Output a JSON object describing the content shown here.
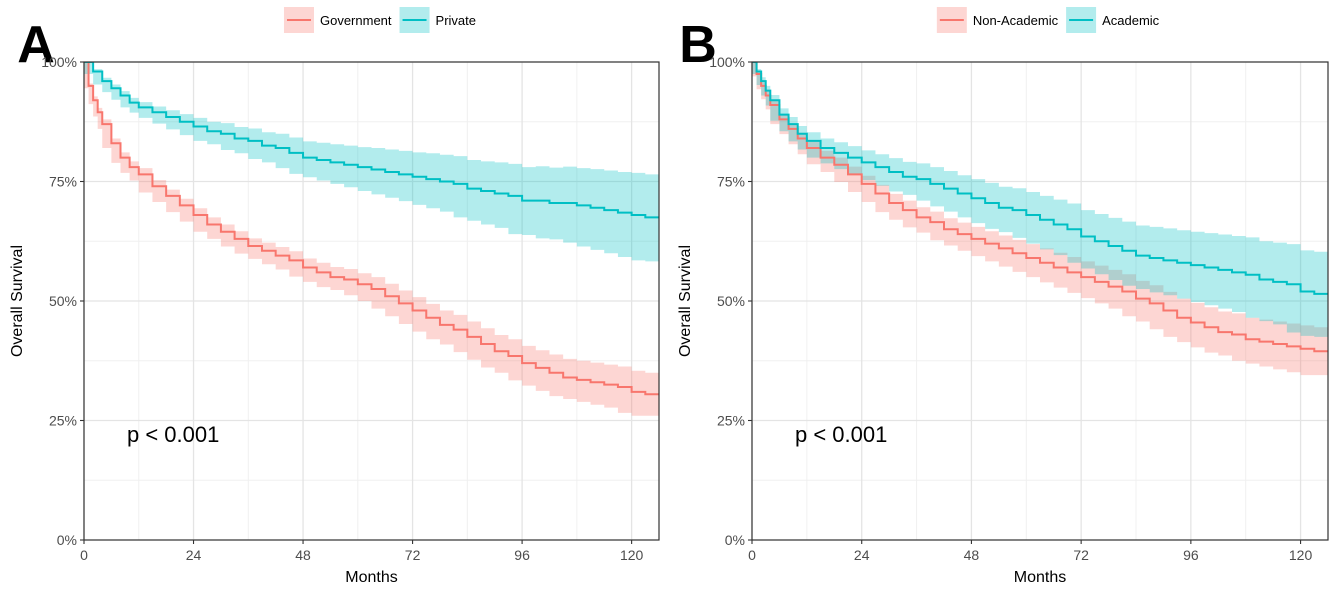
{
  "chart_data": [
    {
      "type": "line",
      "panel_label": "A",
      "xlabel": "Months",
      "ylabel": "Overall Survival",
      "xlim": [
        0,
        126
      ],
      "ylim": [
        0,
        1
      ],
      "x_ticks": [
        0,
        24,
        48,
        72,
        96,
        120
      ],
      "x_tick_labels": [
        "0",
        "24",
        "48",
        "72",
        "96",
        "120"
      ],
      "y_ticks": [
        0,
        0.25,
        0.5,
        0.75,
        1.0
      ],
      "y_tick_labels": [
        "0%",
        "25%",
        "50%",
        "75%",
        "100%"
      ],
      "grid": true,
      "legend_position": "top",
      "annotation": "p < 0.001",
      "series": [
        {
          "name": "Government",
          "color": "#F8766D",
          "band_color": "#F8766D",
          "x": [
            0,
            1,
            2,
            3,
            4,
            6,
            8,
            10,
            12,
            15,
            18,
            21,
            24,
            27,
            30,
            33,
            36,
            39,
            42,
            45,
            48,
            51,
            54,
            57,
            60,
            63,
            66,
            69,
            72,
            75,
            78,
            81,
            84,
            87,
            90,
            93,
            96,
            99,
            102,
            105,
            108,
            111,
            114,
            117,
            120,
            123,
            126
          ],
          "values": [
            1.0,
            0.95,
            0.92,
            0.895,
            0.87,
            0.83,
            0.8,
            0.78,
            0.765,
            0.74,
            0.72,
            0.7,
            0.68,
            0.66,
            0.645,
            0.63,
            0.615,
            0.605,
            0.595,
            0.585,
            0.57,
            0.56,
            0.55,
            0.545,
            0.535,
            0.525,
            0.51,
            0.495,
            0.48,
            0.465,
            0.45,
            0.44,
            0.425,
            0.41,
            0.395,
            0.385,
            0.37,
            0.36,
            0.35,
            0.34,
            0.335,
            0.33,
            0.325,
            0.32,
            0.31,
            0.305,
            0.305
          ],
          "lower": [
            1.0,
            0.945,
            0.912,
            0.886,
            0.86,
            0.82,
            0.789,
            0.768,
            0.752,
            0.727,
            0.707,
            0.686,
            0.666,
            0.645,
            0.63,
            0.614,
            0.599,
            0.588,
            0.577,
            0.566,
            0.551,
            0.54,
            0.529,
            0.523,
            0.512,
            0.5,
            0.484,
            0.468,
            0.452,
            0.436,
            0.42,
            0.409,
            0.393,
            0.377,
            0.361,
            0.35,
            0.334,
            0.323,
            0.312,
            0.301,
            0.295,
            0.289,
            0.283,
            0.277,
            0.266,
            0.26,
            0.26
          ],
          "upper": [
            1.0,
            0.955,
            0.928,
            0.904,
            0.88,
            0.84,
            0.811,
            0.792,
            0.778,
            0.753,
            0.733,
            0.714,
            0.694,
            0.675,
            0.66,
            0.646,
            0.631,
            0.622,
            0.613,
            0.604,
            0.589,
            0.58,
            0.571,
            0.567,
            0.558,
            0.55,
            0.536,
            0.522,
            0.508,
            0.494,
            0.48,
            0.471,
            0.457,
            0.443,
            0.429,
            0.42,
            0.406,
            0.397,
            0.388,
            0.379,
            0.375,
            0.371,
            0.367,
            0.363,
            0.354,
            0.35,
            0.35
          ]
        },
        {
          "name": "Private",
          "color": "#00BFC4",
          "band_color": "#00BFC4",
          "x": [
            0,
            2,
            4,
            6,
            8,
            10,
            12,
            15,
            18,
            21,
            24,
            27,
            30,
            33,
            36,
            39,
            42,
            45,
            48,
            51,
            54,
            57,
            60,
            63,
            66,
            69,
            72,
            75,
            78,
            81,
            84,
            87,
            90,
            93,
            96,
            99,
            102,
            105,
            108,
            111,
            114,
            117,
            120,
            123,
            126
          ],
          "values": [
            1.0,
            0.98,
            0.96,
            0.945,
            0.93,
            0.915,
            0.905,
            0.895,
            0.885,
            0.875,
            0.865,
            0.855,
            0.85,
            0.84,
            0.835,
            0.825,
            0.82,
            0.81,
            0.8,
            0.795,
            0.79,
            0.785,
            0.78,
            0.775,
            0.77,
            0.765,
            0.76,
            0.755,
            0.75,
            0.745,
            0.735,
            0.73,
            0.725,
            0.72,
            0.71,
            0.71,
            0.705,
            0.705,
            0.7,
            0.695,
            0.69,
            0.685,
            0.68,
            0.675,
            0.675
          ],
          "lower": [
            1.0,
            0.975,
            0.953,
            0.937,
            0.921,
            0.905,
            0.894,
            0.883,
            0.871,
            0.859,
            0.847,
            0.835,
            0.828,
            0.816,
            0.809,
            0.797,
            0.79,
            0.778,
            0.766,
            0.759,
            0.752,
            0.745,
            0.738,
            0.73,
            0.723,
            0.716,
            0.709,
            0.701,
            0.694,
            0.687,
            0.675,
            0.668,
            0.66,
            0.653,
            0.64,
            0.638,
            0.631,
            0.629,
            0.622,
            0.614,
            0.607,
            0.6,
            0.592,
            0.585,
            0.583
          ],
          "upper": [
            1.0,
            0.985,
            0.967,
            0.953,
            0.939,
            0.925,
            0.916,
            0.907,
            0.899,
            0.891,
            0.883,
            0.875,
            0.872,
            0.864,
            0.861,
            0.853,
            0.85,
            0.842,
            0.834,
            0.831,
            0.828,
            0.825,
            0.822,
            0.82,
            0.817,
            0.814,
            0.811,
            0.809,
            0.806,
            0.803,
            0.795,
            0.792,
            0.79,
            0.787,
            0.78,
            0.782,
            0.779,
            0.781,
            0.778,
            0.776,
            0.773,
            0.77,
            0.768,
            0.765,
            0.767
          ]
        }
      ]
    },
    {
      "type": "line",
      "panel_label": "B",
      "xlabel": "Months",
      "ylabel": "Overall Survival",
      "xlim": [
        0,
        126
      ],
      "ylim": [
        0,
        1
      ],
      "x_ticks": [
        0,
        24,
        48,
        72,
        96,
        120
      ],
      "x_tick_labels": [
        "0",
        "24",
        "48",
        "72",
        "96",
        "120"
      ],
      "y_ticks": [
        0,
        0.25,
        0.5,
        0.75,
        1.0
      ],
      "y_tick_labels": [
        "0%",
        "25%",
        "50%",
        "75%",
        "100%"
      ],
      "grid": true,
      "legend_position": "top",
      "annotation": "p < 0.001",
      "series": [
        {
          "name": "Non-Academic",
          "color": "#F8766D",
          "band_color": "#F8766D",
          "x": [
            0,
            1,
            2,
            3,
            4,
            6,
            8,
            10,
            12,
            15,
            18,
            21,
            24,
            27,
            30,
            33,
            36,
            39,
            42,
            45,
            48,
            51,
            54,
            57,
            60,
            63,
            66,
            69,
            72,
            75,
            78,
            81,
            84,
            87,
            90,
            93,
            96,
            99,
            102,
            105,
            108,
            111,
            114,
            117,
            120,
            123,
            126
          ],
          "values": [
            1.0,
            0.975,
            0.95,
            0.93,
            0.91,
            0.88,
            0.86,
            0.84,
            0.82,
            0.8,
            0.785,
            0.765,
            0.745,
            0.725,
            0.705,
            0.69,
            0.675,
            0.665,
            0.65,
            0.64,
            0.63,
            0.62,
            0.61,
            0.6,
            0.59,
            0.58,
            0.57,
            0.56,
            0.55,
            0.54,
            0.53,
            0.52,
            0.505,
            0.495,
            0.48,
            0.465,
            0.455,
            0.445,
            0.435,
            0.43,
            0.42,
            0.415,
            0.41,
            0.405,
            0.4,
            0.395,
            0.395
          ],
          "lower": [
            1.0,
            0.97,
            0.943,
            0.922,
            0.901,
            0.87,
            0.849,
            0.828,
            0.807,
            0.786,
            0.77,
            0.749,
            0.728,
            0.707,
            0.686,
            0.67,
            0.654,
            0.643,
            0.627,
            0.616,
            0.605,
            0.594,
            0.583,
            0.572,
            0.561,
            0.55,
            0.539,
            0.528,
            0.517,
            0.506,
            0.495,
            0.484,
            0.468,
            0.457,
            0.441,
            0.425,
            0.414,
            0.403,
            0.392,
            0.386,
            0.375,
            0.369,
            0.363,
            0.357,
            0.351,
            0.345,
            0.345
          ],
          "upper": [
            1.0,
            0.98,
            0.957,
            0.938,
            0.919,
            0.89,
            0.871,
            0.852,
            0.833,
            0.814,
            0.8,
            0.781,
            0.762,
            0.743,
            0.724,
            0.71,
            0.696,
            0.687,
            0.673,
            0.664,
            0.655,
            0.646,
            0.637,
            0.628,
            0.619,
            0.61,
            0.601,
            0.592,
            0.583,
            0.574,
            0.565,
            0.556,
            0.542,
            0.533,
            0.519,
            0.505,
            0.496,
            0.487,
            0.478,
            0.474,
            0.465,
            0.461,
            0.457,
            0.453,
            0.449,
            0.445,
            0.445
          ]
        },
        {
          "name": "Academic",
          "color": "#00BFC4",
          "band_color": "#00BFC4",
          "x": [
            0,
            1,
            2,
            3,
            4,
            6,
            8,
            10,
            12,
            15,
            18,
            21,
            24,
            27,
            30,
            33,
            36,
            39,
            42,
            45,
            48,
            51,
            54,
            57,
            60,
            63,
            66,
            69,
            72,
            75,
            78,
            81,
            84,
            87,
            90,
            93,
            96,
            99,
            102,
            105,
            108,
            111,
            114,
            117,
            120,
            123,
            126
          ],
          "values": [
            1.0,
            0.98,
            0.96,
            0.94,
            0.92,
            0.89,
            0.87,
            0.85,
            0.835,
            0.82,
            0.81,
            0.8,
            0.79,
            0.78,
            0.77,
            0.76,
            0.755,
            0.745,
            0.735,
            0.725,
            0.715,
            0.705,
            0.695,
            0.69,
            0.68,
            0.67,
            0.66,
            0.65,
            0.635,
            0.625,
            0.615,
            0.605,
            0.595,
            0.59,
            0.585,
            0.58,
            0.575,
            0.57,
            0.565,
            0.56,
            0.555,
            0.545,
            0.54,
            0.535,
            0.52,
            0.515,
            0.515
          ],
          "lower": [
            1.0,
            0.975,
            0.952,
            0.93,
            0.909,
            0.877,
            0.855,
            0.834,
            0.817,
            0.8,
            0.788,
            0.776,
            0.765,
            0.753,
            0.741,
            0.729,
            0.722,
            0.71,
            0.698,
            0.687,
            0.675,
            0.663,
            0.651,
            0.644,
            0.632,
            0.62,
            0.608,
            0.596,
            0.58,
            0.568,
            0.556,
            0.544,
            0.532,
            0.525,
            0.518,
            0.512,
            0.505,
            0.498,
            0.491,
            0.484,
            0.477,
            0.465,
            0.458,
            0.451,
            0.434,
            0.427,
            0.425
          ],
          "upper": [
            1.0,
            0.985,
            0.968,
            0.95,
            0.931,
            0.903,
            0.885,
            0.866,
            0.853,
            0.84,
            0.832,
            0.824,
            0.815,
            0.807,
            0.799,
            0.791,
            0.788,
            0.78,
            0.772,
            0.763,
            0.755,
            0.747,
            0.739,
            0.736,
            0.728,
            0.72,
            0.712,
            0.704,
            0.69,
            0.682,
            0.674,
            0.666,
            0.658,
            0.655,
            0.652,
            0.648,
            0.645,
            0.642,
            0.639,
            0.636,
            0.633,
            0.625,
            0.622,
            0.619,
            0.606,
            0.603,
            0.605
          ]
        }
      ]
    }
  ]
}
